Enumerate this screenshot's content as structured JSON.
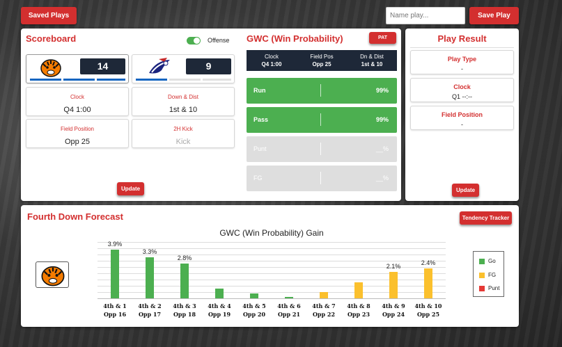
{
  "header": {
    "saved_plays_label": "Saved Plays",
    "name_play_placeholder": "Name play...",
    "save_play_label": "Save Play"
  },
  "scoreboard": {
    "title": "Scoreboard",
    "offense_label": "Offense",
    "home_score": "14",
    "away_score": "9",
    "clock_label": "Clock",
    "clock_value": "Q4 1:00",
    "down_label": "Down & Dist",
    "down_value": "1st & 10",
    "fieldpos_label": "Field Position",
    "fieldpos_value": "Opp 25",
    "kick_label": "2H Kick",
    "kick_value": "Kick",
    "update_label": "Update"
  },
  "gwc": {
    "title": "GWC (Win Probability)",
    "pat_label": "PAT",
    "clock_header": "Clock",
    "clock_value": "Q4 1:00",
    "fieldpos_header": "Field Pos",
    "fieldpos_value": "Opp 25",
    "dndist_header": "Dn & Dist",
    "dndist_value": "1st & 10",
    "rows": [
      {
        "name": "Run",
        "pct": "99%"
      },
      {
        "name": "Pass",
        "pct": "99%"
      },
      {
        "name": "Punt",
        "pct": "__%"
      },
      {
        "name": "FG",
        "pct": "__%"
      }
    ]
  },
  "play_result": {
    "title": "Play Result",
    "play_type_label": "Play Type",
    "play_type_value": "-",
    "clock_label": "Clock",
    "clock_value": "Q1 --:--",
    "fieldpos_label": "Field Position",
    "fieldpos_value": "-",
    "update_label": "Update"
  },
  "forecast": {
    "title": "Fourth Down Forecast",
    "tendency_label": "Tendency Tracker"
  },
  "colors": {
    "accent_red": "#d32f2f",
    "go_green": "#4caf50",
    "fg_yellow": "#fbc02d",
    "punt_red": "#e53935",
    "navy": "#1e2838"
  },
  "chart_data": {
    "type": "bar",
    "title": "GWC (Win Probability) Gain",
    "xlabel": "",
    "ylabel": "",
    "ylim": [
      0,
      4.5
    ],
    "categories": [
      [
        "4th & 1",
        "Opp 16"
      ],
      [
        "4th & 2",
        "Opp 17"
      ],
      [
        "4th & 3",
        "Opp 18"
      ],
      [
        "4th & 4",
        "Opp 19"
      ],
      [
        "4th & 5",
        "Opp 20"
      ],
      [
        "4th & 6",
        "Opp 21"
      ],
      [
        "4th & 7",
        "Opp 22"
      ],
      [
        "4th & 8",
        "Opp 23"
      ],
      [
        "4th & 9",
        "Opp 24"
      ],
      [
        "4th & 10",
        "Opp 25"
      ]
    ],
    "values": [
      3.9,
      3.3,
      2.8,
      0.8,
      0.4,
      0.1,
      0.5,
      1.3,
      2.1,
      2.4
    ],
    "decisions": [
      "Go",
      "Go",
      "Go",
      "Go",
      "Go",
      "Go",
      "FG",
      "FG",
      "FG",
      "FG"
    ],
    "data_labels": [
      "3.9%",
      "3.3%",
      "2.8%",
      "",
      "",
      "",
      "",
      "",
      "2.1%",
      "2.4%"
    ],
    "legend": {
      "position": "right",
      "entries": [
        "Go",
        "FG",
        "Punt"
      ]
    }
  }
}
